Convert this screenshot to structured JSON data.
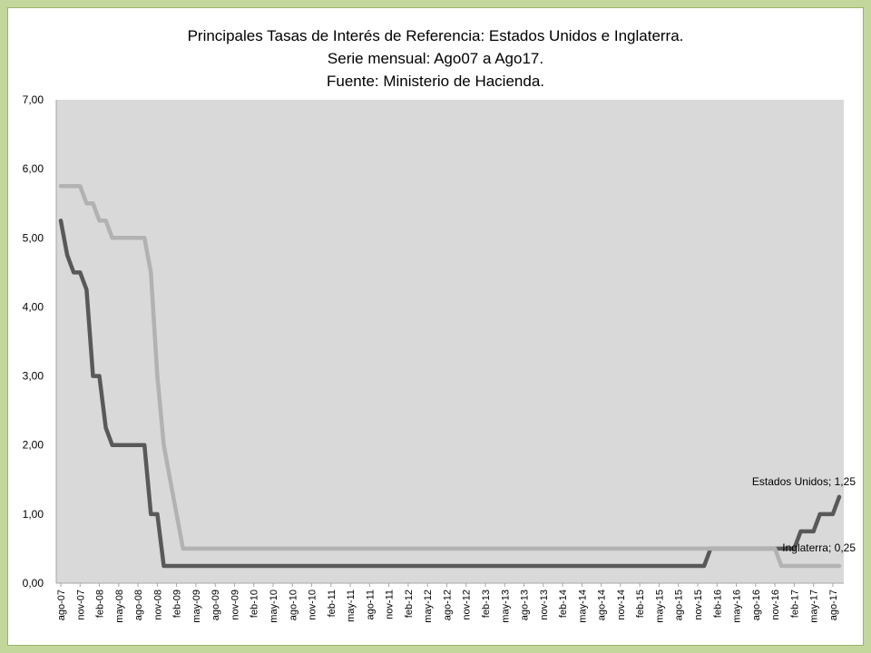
{
  "colors": {
    "background": "#c3d69b",
    "plot_area": "#d9d9d9",
    "estados_unidos": "#595959",
    "inglaterra": "#b2b2b2"
  },
  "chart_data": {
    "type": "line",
    "title": [
      "Principales Tasas de Interés de Referencia: Estados Unidos e Inglaterra.",
      "Serie mensual: Ago07 a Ago17.",
      "Fuente: Ministerio de Hacienda."
    ],
    "xlabel": "",
    "ylabel": "",
    "ylim": [
      0,
      7
    ],
    "y_ticks": [
      "0,00",
      "1,00",
      "2,00",
      "3,00",
      "4,00",
      "5,00",
      "6,00",
      "7,00"
    ],
    "x_ticks": [
      "ago-07",
      "nov-07",
      "feb-08",
      "may-08",
      "ago-08",
      "nov-08",
      "feb-09",
      "may-09",
      "ago-09",
      "nov-09",
      "feb-10",
      "may-10",
      "ago-10",
      "nov-10",
      "feb-11",
      "may-11",
      "ago-11",
      "nov-11",
      "feb-12",
      "may-12",
      "ago-12",
      "nov-12",
      "feb-13",
      "may-13",
      "ago-13",
      "nov-13",
      "feb-14",
      "may-14",
      "ago-14",
      "nov-14",
      "feb-15",
      "may-15",
      "ago-15",
      "nov-15",
      "feb-16",
      "may-16",
      "ago-16",
      "nov-16",
      "feb-17",
      "may-17",
      "ago-17"
    ],
    "grid": false,
    "legend": "none",
    "series": [
      {
        "key": "estados_unidos",
        "annotation": "Estados Unidos; 1,25",
        "points": [
          [
            0,
            5.25
          ],
          [
            1,
            4.75
          ],
          [
            2,
            4.5
          ],
          [
            3,
            4.5
          ],
          [
            4,
            4.25
          ],
          [
            5,
            3.0
          ],
          [
            6,
            3.0
          ],
          [
            7,
            2.25
          ],
          [
            8,
            2.0
          ],
          [
            9,
            2.0
          ],
          [
            10,
            2.0
          ],
          [
            11,
            2.0
          ],
          [
            12,
            2.0
          ],
          [
            13,
            2.0
          ],
          [
            14,
            1.0
          ],
          [
            15,
            1.0
          ],
          [
            16,
            0.25
          ],
          [
            17,
            0.25
          ],
          [
            99,
            0.25
          ],
          [
            100,
            0.25
          ],
          [
            101,
            0.5
          ],
          [
            102,
            0.5
          ],
          [
            110,
            0.5
          ],
          [
            111,
            0.5
          ],
          [
            112,
            0.5
          ],
          [
            114,
            0.5
          ],
          [
            115,
            0.75
          ],
          [
            116,
            0.75
          ],
          [
            117,
            0.75
          ],
          [
            118,
            1.0
          ],
          [
            119,
            1.0
          ],
          [
            120,
            1.0
          ],
          [
            121,
            1.25
          ],
          [
            122,
            1.25
          ],
          [
            123,
            1.25
          ]
        ]
      },
      {
        "key": "inglaterra",
        "annotation": "Inglaterra; 0,25",
        "points": [
          [
            0,
            5.75
          ],
          [
            1,
            5.75
          ],
          [
            2,
            5.75
          ],
          [
            3,
            5.75
          ],
          [
            4,
            5.5
          ],
          [
            5,
            5.5
          ],
          [
            6,
            5.25
          ],
          [
            7,
            5.25
          ],
          [
            8,
            5.0
          ],
          [
            9,
            5.0
          ],
          [
            10,
            5.0
          ],
          [
            11,
            5.0
          ],
          [
            12,
            5.0
          ],
          [
            13,
            5.0
          ],
          [
            14,
            4.5
          ],
          [
            15,
            3.0
          ],
          [
            16,
            2.0
          ],
          [
            17,
            1.5
          ],
          [
            18,
            1.0
          ],
          [
            19,
            0.5
          ],
          [
            20,
            0.5
          ],
          [
            106,
            0.5
          ],
          [
            107,
            0.5
          ],
          [
            108,
            0.5
          ],
          [
            109,
            0.5
          ],
          [
            110,
            0.5
          ],
          [
            111,
            0.5
          ],
          [
            112,
            0.25
          ],
          [
            113,
            0.25
          ],
          [
            123,
            0.25
          ]
        ]
      }
    ]
  }
}
